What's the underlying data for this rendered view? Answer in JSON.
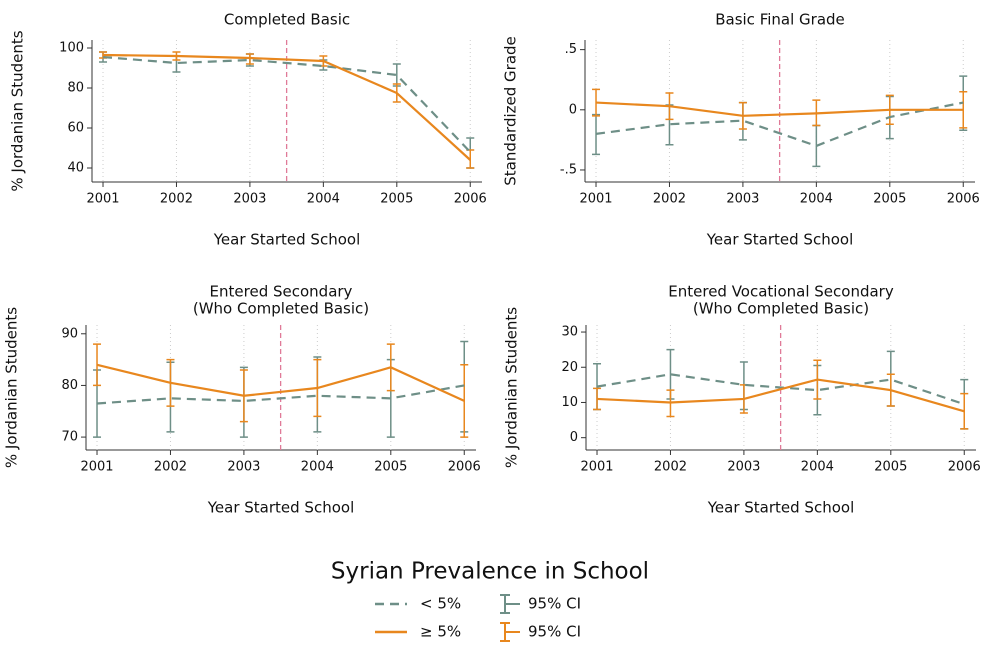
{
  "chart_data": [
    {
      "type": "line",
      "title": "Completed Basic",
      "ylabel": "% Jordanian Students",
      "xlabel": "Year Started School",
      "x": [
        2001,
        2002,
        2003,
        2004,
        2005,
        2006
      ],
      "xlim": [
        2000.85,
        2006.16
      ],
      "xticks": [
        2001,
        2002,
        2003,
        2004,
        2005,
        2006
      ],
      "ylim": [
        33,
        104
      ],
      "yticks": [
        40,
        60,
        80,
        100
      ],
      "vline": 2003.5,
      "series": [
        {
          "color": "#6e8f87",
          "dash": true,
          "values": [
            95.5,
            92.5,
            94,
            91,
            86.5,
            48
          ],
          "ci_low": [
            93,
            88,
            91,
            89,
            81,
            40
          ],
          "ci_high": [
            98,
            96,
            97,
            94,
            92,
            55
          ]
        },
        {
          "color": "#e8871e",
          "dash": false,
          "values": [
            96.5,
            96,
            95,
            93.5,
            77.5,
            44
          ],
          "ci_low": [
            95,
            94,
            92,
            91,
            73,
            40
          ],
          "ci_high": [
            98,
            98,
            97,
            96,
            82,
            49
          ]
        }
      ]
    },
    {
      "type": "line",
      "title": "Basic Final Grade",
      "ylabel": "Standardized Grade",
      "xlabel": "Year Started School",
      "x": [
        2001,
        2002,
        2003,
        2004,
        2005,
        2006
      ],
      "xlim": [
        2000.85,
        2006.16
      ],
      "xticks": [
        2001,
        2002,
        2003,
        2004,
        2005,
        2006
      ],
      "ylim": [
        -0.6,
        0.58
      ],
      "yticks": [
        {
          "value": -0.5,
          "label": "-.5"
        },
        0,
        {
          "value": 0.5,
          "label": ".5"
        }
      ],
      "vline": 2003.5,
      "series": [
        {
          "color": "#6e8f87",
          "dash": true,
          "values": [
            -0.2,
            -0.12,
            -0.09,
            -0.3,
            -0.06,
            0.06
          ],
          "ci_low": [
            -0.37,
            -0.29,
            -0.25,
            -0.47,
            -0.24,
            -0.17
          ],
          "ci_high": [
            -0.04,
            0.04,
            0.06,
            -0.13,
            0.11,
            0.28
          ]
        },
        {
          "color": "#e8871e",
          "dash": false,
          "values": [
            0.06,
            0.03,
            -0.05,
            -0.03,
            0,
            0
          ],
          "ci_low": [
            -0.05,
            -0.08,
            -0.16,
            -0.13,
            -0.12,
            -0.15
          ],
          "ci_high": [
            0.17,
            0.14,
            0.06,
            0.08,
            0.12,
            0.15
          ]
        }
      ]
    },
    {
      "type": "line",
      "title": [
        "Entered Secondary",
        "(Who Completed Basic)"
      ],
      "ylabel": "% Jordanian Students",
      "xlabel": "Year Started School",
      "x": [
        2001,
        2002,
        2003,
        2004,
        2005,
        2006
      ],
      "xlim": [
        2000.85,
        2006.16
      ],
      "xticks": [
        2001,
        2002,
        2003,
        2004,
        2005,
        2006
      ],
      "ylim": [
        67.5,
        91.7
      ],
      "yticks": [
        70,
        80,
        90
      ],
      "vline": 2003.5,
      "series": [
        {
          "color": "#6e8f87",
          "dash": true,
          "values": [
            76.5,
            77.5,
            77,
            78,
            77.5,
            80
          ],
          "ci_low": [
            70,
            71,
            70,
            71,
            70,
            71
          ],
          "ci_high": [
            83,
            84.5,
            83.5,
            85.5,
            85,
            88.5
          ]
        },
        {
          "color": "#e8871e",
          "dash": false,
          "values": [
            84,
            80.5,
            78,
            79.5,
            83.5,
            77
          ],
          "ci_low": [
            80,
            76,
            73,
            74,
            79,
            70
          ],
          "ci_high": [
            88,
            85,
            83,
            85,
            88,
            84
          ]
        }
      ]
    },
    {
      "type": "line",
      "title": [
        "Entered Vocational Secondary",
        "(Who Completed Basic)"
      ],
      "ylabel": "% Jordanian Students",
      "xlabel": "Year Started School",
      "x": [
        2001,
        2002,
        2003,
        2004,
        2005,
        2006
      ],
      "xlim": [
        2000.85,
        2006.16
      ],
      "xticks": [
        2001,
        2002,
        2003,
        2004,
        2005,
        2006
      ],
      "ylim": [
        -3.5,
        32
      ],
      "yticks": [
        0,
        10,
        20,
        30
      ],
      "vline": 2003.5,
      "series": [
        {
          "color": "#6e8f87",
          "dash": true,
          "values": [
            14.5,
            18,
            15,
            13.5,
            16.5,
            9.5
          ],
          "ci_low": [
            8,
            11,
            8,
            6.5,
            9,
            2.5
          ],
          "ci_high": [
            21,
            25,
            21.5,
            20.5,
            24.5,
            16.5
          ]
        },
        {
          "color": "#e8871e",
          "dash": false,
          "values": [
            11,
            10,
            11,
            16.5,
            13.5,
            7.5
          ],
          "ci_low": [
            8,
            6,
            7,
            11,
            9,
            2.5
          ],
          "ci_high": [
            14,
            13.5,
            15,
            22,
            18,
            12.5
          ]
        }
      ]
    }
  ],
  "legend": {
    "title": "Syrian Prevalence in School",
    "entries": [
      {
        "name": "< 5%",
        "ci": "95% CI"
      },
      {
        "name": "≥ 5%",
        "ci": "95% CI"
      }
    ]
  }
}
